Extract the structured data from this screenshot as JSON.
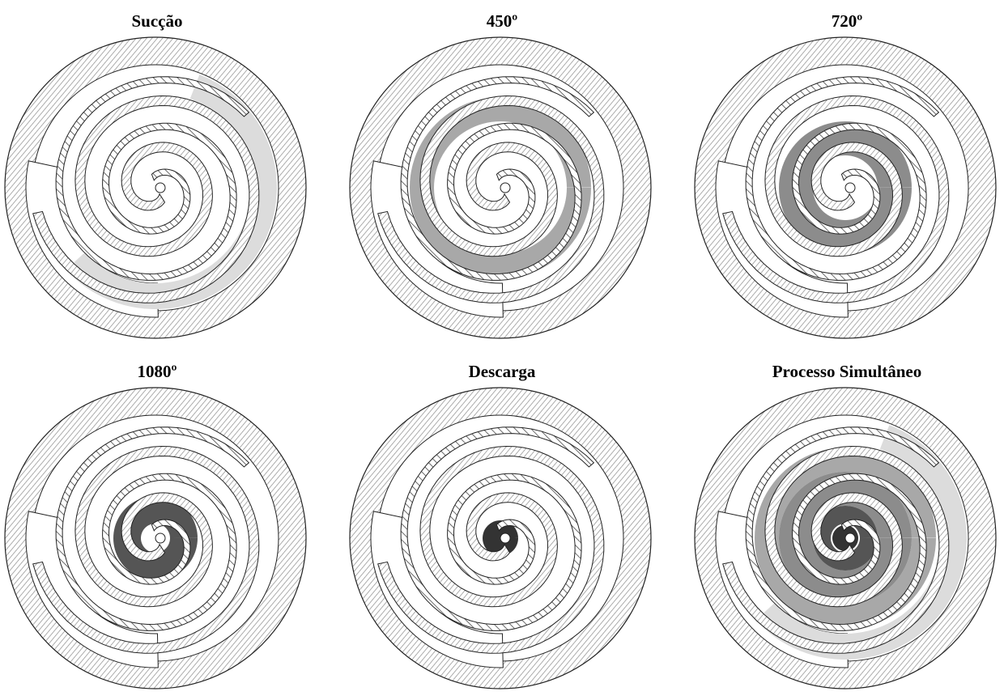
{
  "figure": {
    "panels": [
      {
        "id": "succao",
        "label": "Sucção",
        "stage": "suction"
      },
      {
        "id": "450",
        "label": "450º",
        "stage": "compression-450"
      },
      {
        "id": "720",
        "label": "720º",
        "stage": "compression-720"
      },
      {
        "id": "1080",
        "label": "1080º",
        "stage": "compression-1080"
      },
      {
        "id": "descarga",
        "label": "Descarga",
        "stage": "discharge"
      },
      {
        "id": "simultaneo",
        "label": "Processo Simultâneo",
        "stage": "simultaneous"
      }
    ],
    "colors": {
      "housing_hatch": "#8a8a8a",
      "scroll_wrap_hatch": "#6a6a6a",
      "suction_fill": "#dcdcdc",
      "stage_450_fill": "#a8a8a8",
      "stage_720_fill": "#8c8c8c",
      "stage_1080_fill": "#555555",
      "discharge_fill": "#333333"
    }
  }
}
